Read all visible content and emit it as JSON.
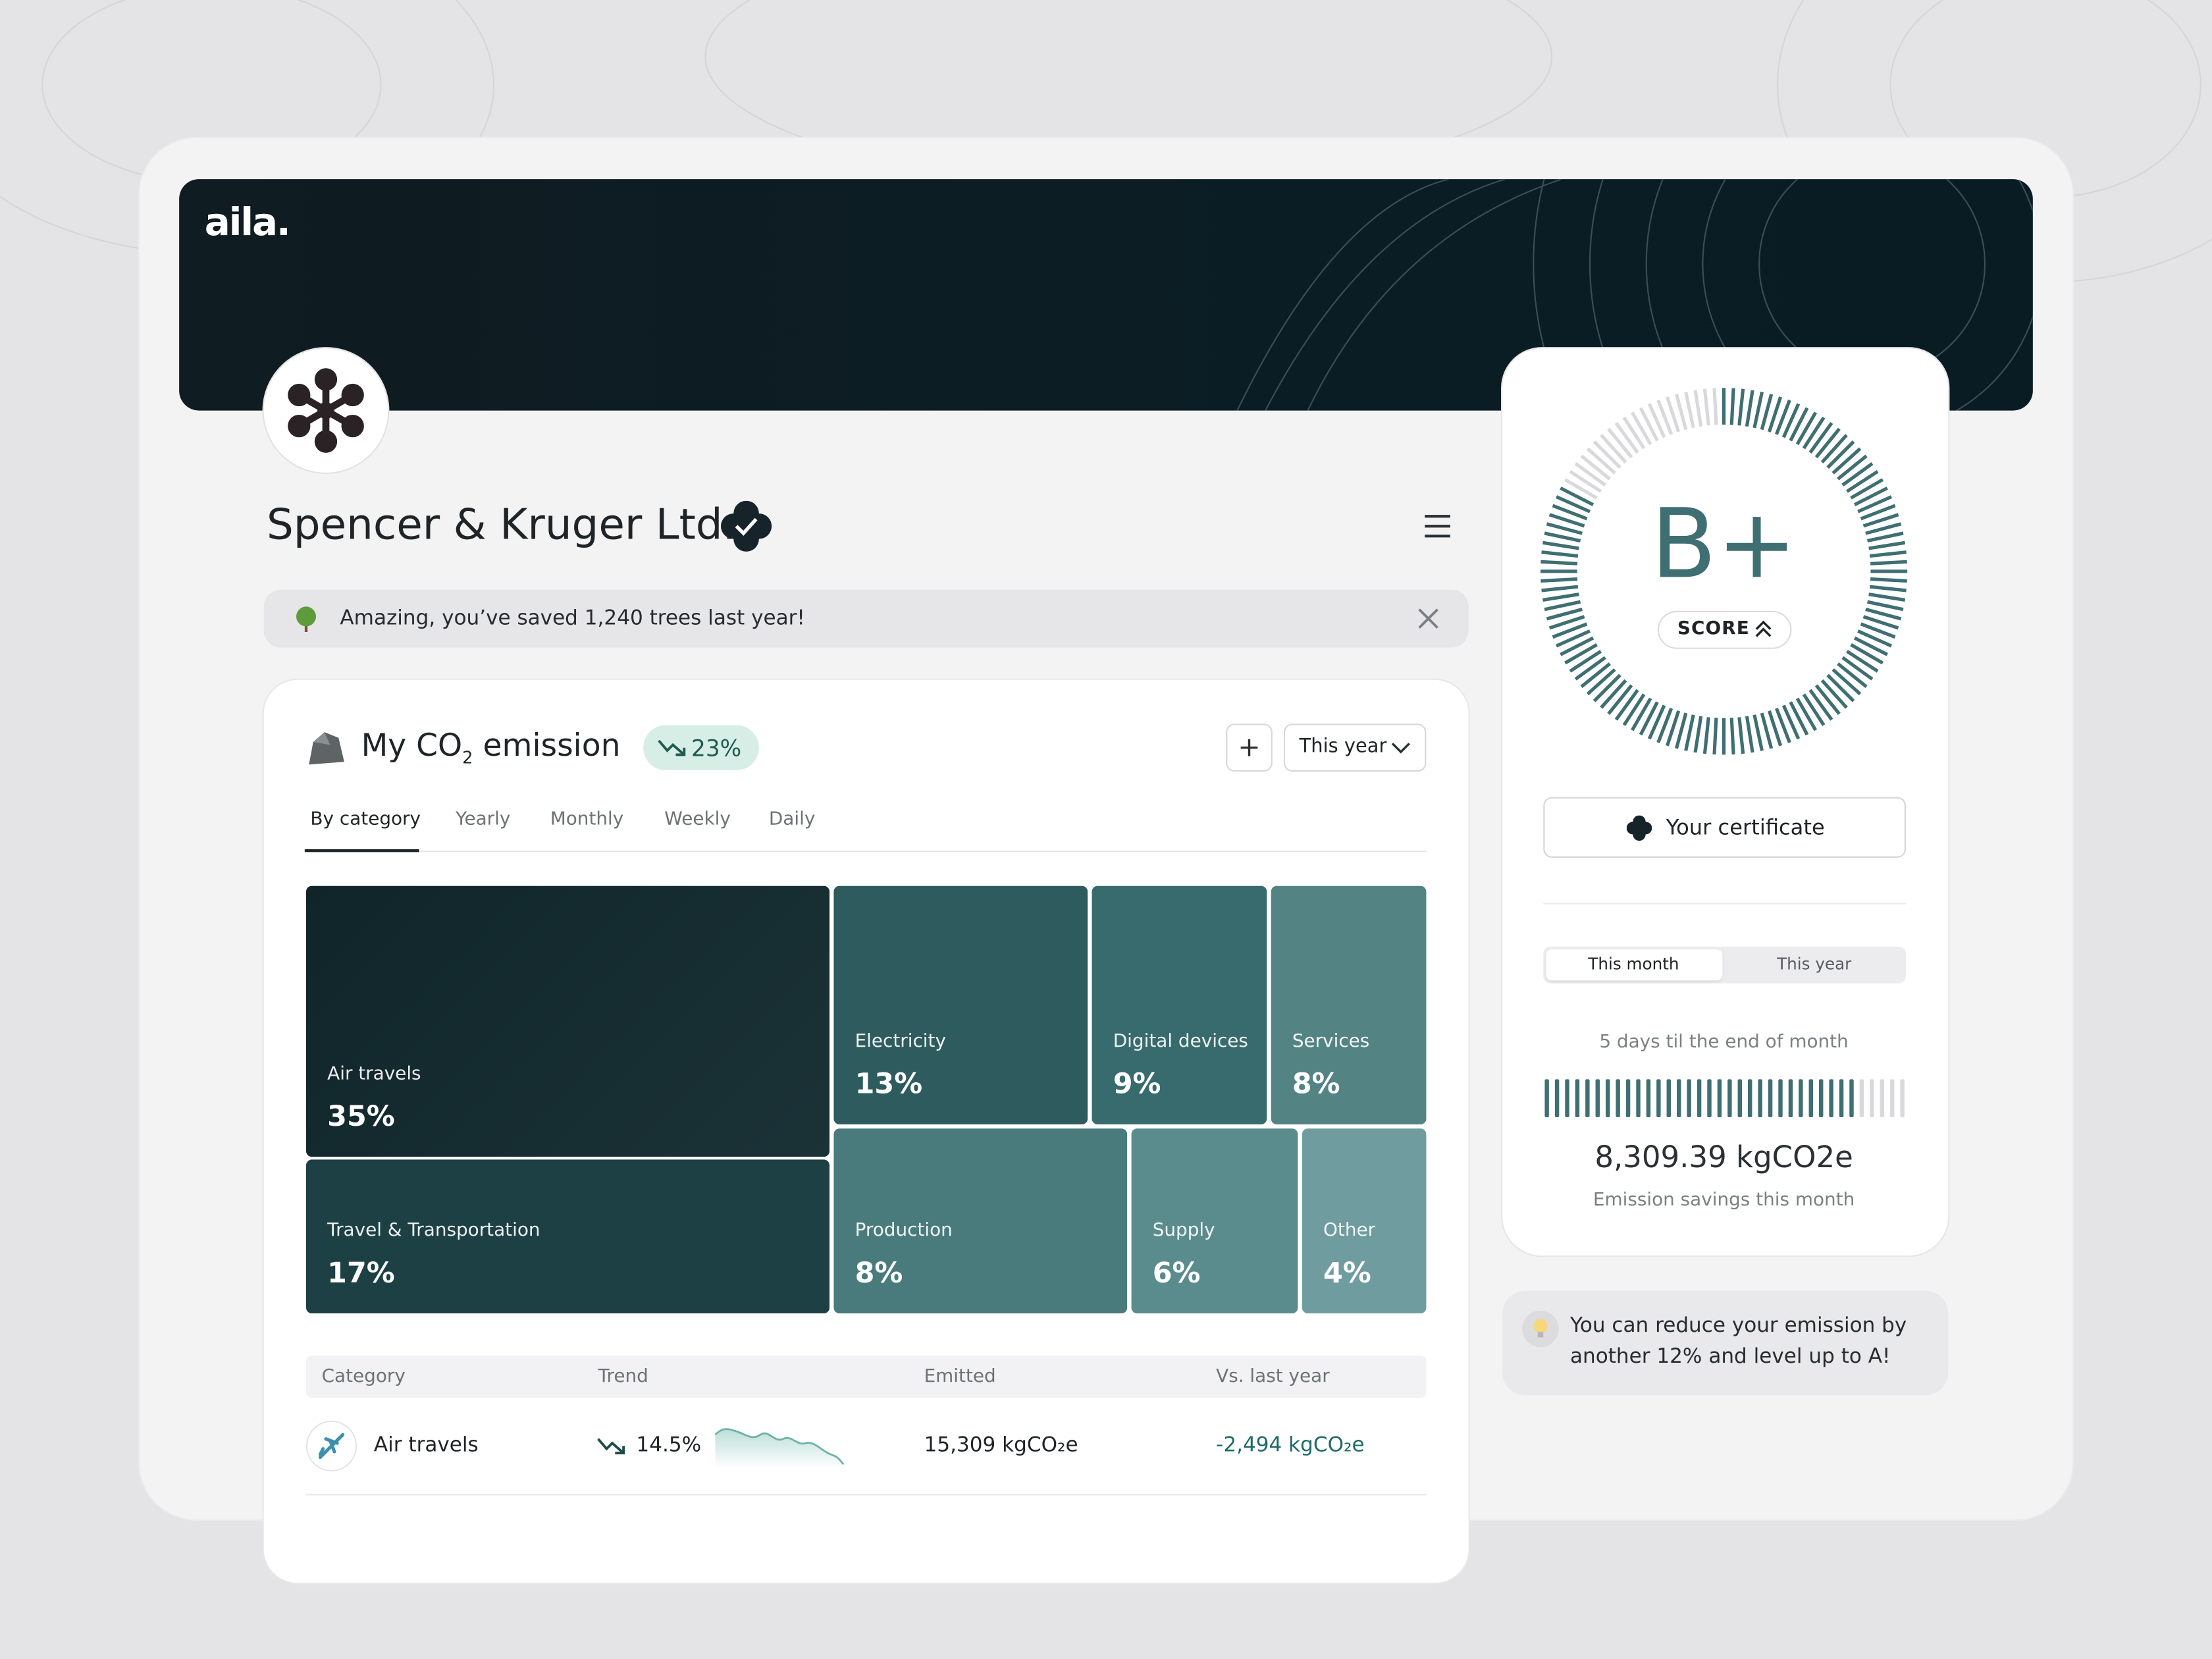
{
  "brand": "aila.",
  "company": {
    "name": "Spencer & Kruger Ltd."
  },
  "banner": {
    "text": "Amazing, you’ve saved 1,240 trees last year!"
  },
  "emission": {
    "title": {
      "pre": "My CO",
      "sub": "2",
      "post": " emission"
    },
    "badge": "23%",
    "period": "This year",
    "tabs": [
      "By category",
      "Yearly",
      "Monthly",
      "Weekly",
      "Daily"
    ],
    "tiles": [
      {
        "label": "Air travels",
        "value": "35%"
      },
      {
        "label": "Travel & Transportation",
        "value": "17%"
      },
      {
        "label": "Electricity",
        "value": "13%"
      },
      {
        "label": "Digital devices",
        "value": "9%"
      },
      {
        "label": "Services",
        "value": "8%"
      },
      {
        "label": "Production",
        "value": "8%"
      },
      {
        "label": "Supply",
        "value": "6%"
      },
      {
        "label": "Other",
        "value": "4%"
      }
    ],
    "table": {
      "headers": [
        "Category",
        "Trend",
        "Emitted",
        "Vs. last year"
      ],
      "rows": [
        [
          "Air travels",
          "14.5%",
          "15,309 kgCO₂e",
          "-2,494 kgCO₂e"
        ]
      ]
    }
  },
  "score": {
    "grade": "B+",
    "label": "SCORE",
    "certificate": "Your certificate",
    "toggle": [
      "This month",
      "This year"
    ],
    "countdown": "5 days til the end of month",
    "amount": "8,309.39 kgCO2e",
    "caption": "Emission savings this month"
  },
  "tip": "You can reduce your emission by another 12% and level up to A!"
}
